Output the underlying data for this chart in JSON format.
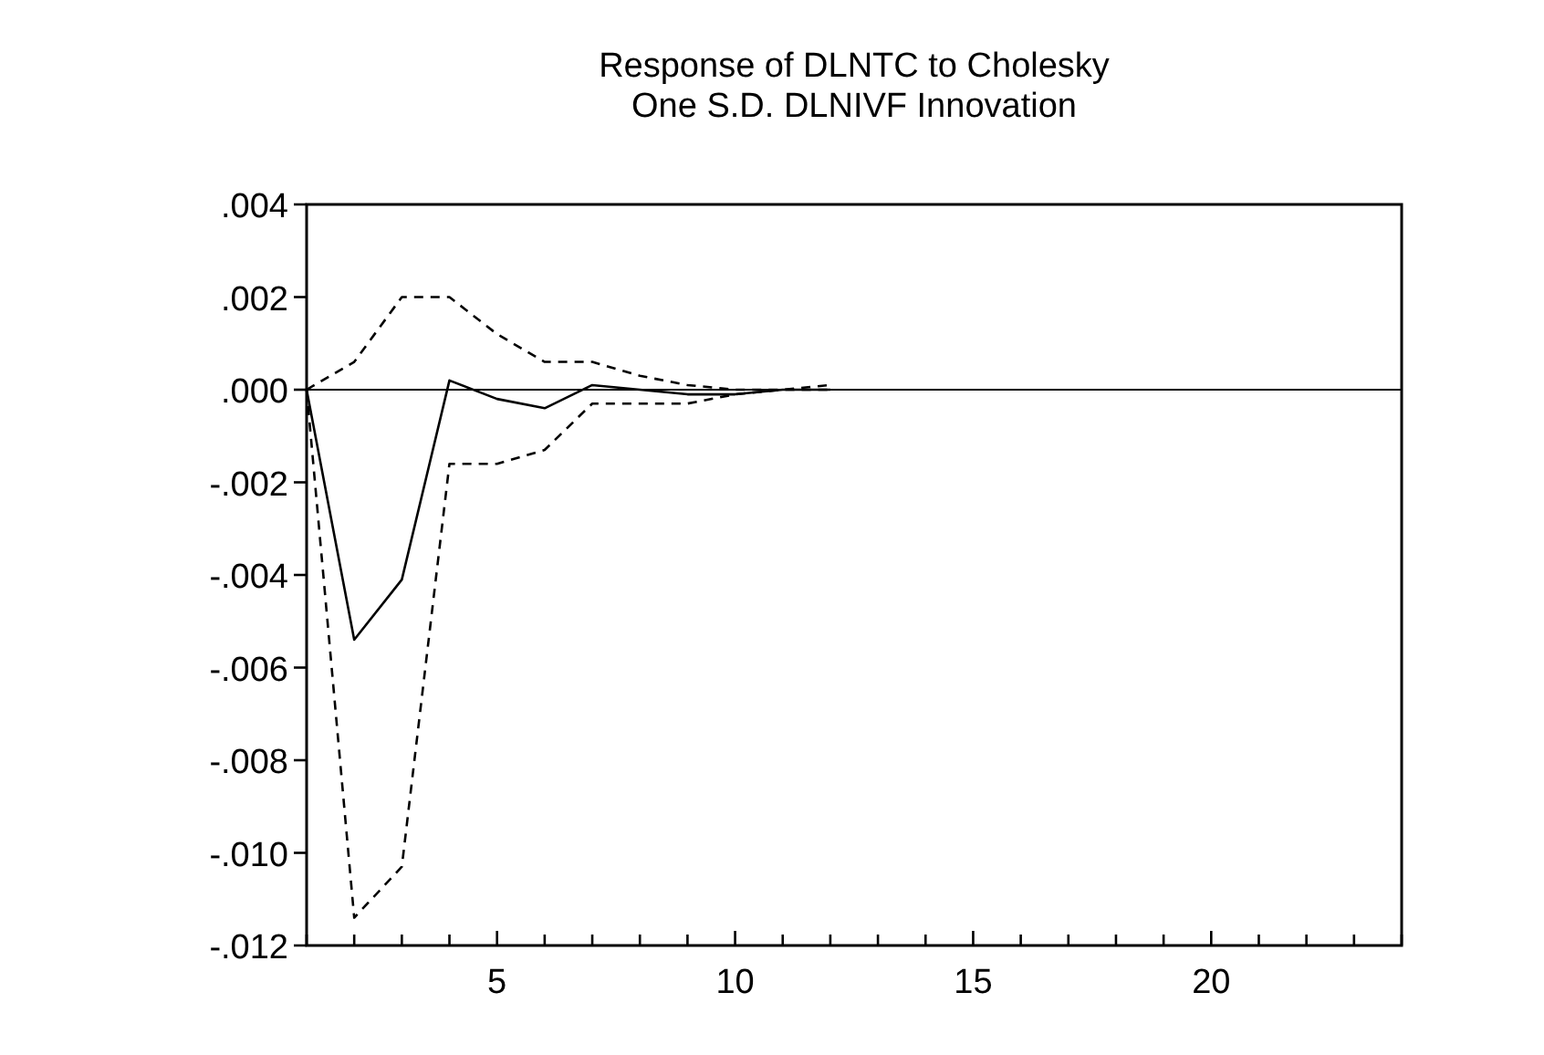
{
  "chart_data": {
    "type": "line",
    "title": "Response of DLNTC to Cholesky\nOne S.D. DLNIVF Innovation",
    "x": [
      1,
      2,
      3,
      4,
      5,
      6,
      7,
      8,
      9,
      10,
      11,
      12
    ],
    "series": [
      {
        "color": "#000000",
        "line_style": "solid",
        "values": [
          0,
          -0.0054,
          -0.0041,
          0.0002,
          -0.0002,
          -0.0004,
          0.0001,
          0.0,
          -0.0001,
          -0.0001,
          0,
          0
        ]
      },
      {
        "color": "#000000",
        "line_style": "dashed",
        "values": [
          0,
          0.0006,
          0.002,
          0.002,
          0.0012,
          0.0006,
          0.0006,
          0.0003,
          0.0001,
          0.0,
          0.0,
          0.0001
        ]
      },
      {
        "color": "#000000",
        "line_style": "dashed",
        "values": [
          0,
          -0.0114,
          -0.0103,
          -0.0016,
          -0.0016,
          -0.0013,
          -0.0003,
          -0.0003,
          -0.0003,
          -0.0001,
          0,
          0
        ]
      }
    ],
    "xlim": [
      1,
      24
    ],
    "xticks": [
      {
        "value": 1,
        "label": null
      },
      {
        "value": 2,
        "label": null
      },
      {
        "value": 3,
        "label": null
      },
      {
        "value": 4,
        "label": null
      },
      5,
      {
        "value": 6,
        "label": null
      },
      {
        "value": 7,
        "label": null
      },
      {
        "value": 8,
        "label": null
      },
      {
        "value": 9,
        "label": null
      },
      10,
      {
        "value": 11,
        "label": null
      },
      {
        "value": 12,
        "label": null
      },
      {
        "value": 13,
        "label": null
      },
      {
        "value": 14,
        "label": null
      },
      15,
      {
        "value": 16,
        "label": null
      },
      {
        "value": 17,
        "label": null
      },
      {
        "value": 18,
        "label": null
      },
      {
        "value": 19,
        "label": null
      },
      20,
      {
        "value": 21,
        "label": null
      },
      {
        "value": 22,
        "label": null
      },
      {
        "value": 23,
        "label": null
      },
      {
        "value": 24,
        "label": null
      }
    ],
    "ylim": [
      -0.012,
      0.004
    ],
    "yticks": [
      {
        "value": 0.004,
        "label": ".004"
      },
      {
        "value": 0.002,
        "label": ".002"
      },
      {
        "value": 0,
        "label": ".000"
      },
      {
        "value": -0.002,
        "label": "-.002"
      },
      {
        "value": -0.004,
        "label": "-.004"
      },
      {
        "value": -0.006,
        "label": "-.006"
      },
      {
        "value": -0.008,
        "label": "-.008"
      },
      {
        "value": -0.01,
        "label": "-.010"
      },
      {
        "value": -0.012,
        "label": "-.012"
      }
    ],
    "ref_lines": [
      {
        "axis": "y",
        "value": 0,
        "color": "#000000",
        "line_style": "solid"
      }
    ],
    "grid": false,
    "marker": "none"
  }
}
